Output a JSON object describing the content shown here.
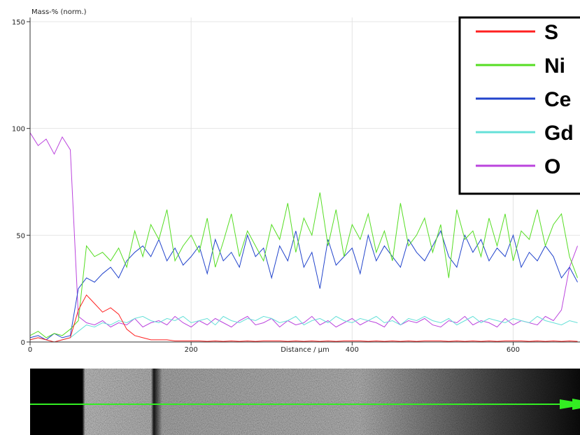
{
  "chart_data": {
    "type": "line",
    "y_label": "Mass-% (norm.)",
    "x_label": "Distance / µm",
    "xlim": [
      0,
      683
    ],
    "ylim": [
      0,
      150
    ],
    "xticks": [
      0,
      200,
      400,
      600
    ],
    "yticks": [
      0,
      50,
      100,
      150
    ],
    "grid": true,
    "legend": "upper right",
    "x": [
      0,
      10,
      20,
      30,
      40,
      50,
      60,
      70,
      80,
      90,
      100,
      110,
      120,
      130,
      140,
      150,
      160,
      170,
      180,
      190,
      200,
      210,
      220,
      230,
      240,
      250,
      260,
      270,
      280,
      290,
      300,
      310,
      320,
      330,
      340,
      350,
      360,
      370,
      380,
      390,
      400,
      410,
      420,
      430,
      440,
      450,
      460,
      470,
      480,
      490,
      500,
      510,
      520,
      530,
      540,
      550,
      560,
      570,
      580,
      590,
      600,
      610,
      620,
      630,
      640,
      650,
      660,
      670,
      680
    ],
    "series": [
      {
        "name": "S",
        "color": "#ff2020",
        "values": [
          1,
          2,
          1,
          0,
          1,
          2,
          15,
          22,
          18,
          14,
          16,
          13,
          6,
          3,
          2,
          1,
          1,
          1,
          0.5,
          0.5,
          0.5,
          0.5,
          0.3,
          0.5,
          0.3,
          0.5,
          0.3,
          0.5,
          0.3,
          0.5,
          0.5,
          0.5,
          0.3,
          0.5,
          0.3,
          0.5,
          0.3,
          0.5,
          0.3,
          0.5,
          0.5,
          0.5,
          0.3,
          0.5,
          0.3,
          0.5,
          0.3,
          0.5,
          0.3,
          0.5,
          0.5,
          0.5,
          0.3,
          0.5,
          0.3,
          0.5,
          0.3,
          0.5,
          0.3,
          0.5,
          0.5,
          0.5,
          0.3,
          0.5,
          0.3,
          0.5,
          0.3,
          0.5,
          0.3
        ]
      },
      {
        "name": "Ni",
        "color": "#55dd22",
        "values": [
          3,
          5,
          2,
          4,
          3,
          6,
          10,
          45,
          40,
          42,
          38,
          44,
          35,
          52,
          40,
          55,
          48,
          62,
          38,
          45,
          50,
          42,
          58,
          35,
          47,
          60,
          40,
          52,
          45,
          38,
          55,
          48,
          65,
          42,
          58,
          50,
          70,
          45,
          62,
          40,
          55,
          48,
          60,
          42,
          52,
          38,
          65,
          45,
          50,
          58,
          42,
          55,
          30,
          62,
          48,
          52,
          40,
          58,
          45,
          60,
          38,
          52,
          48,
          62,
          45,
          55,
          60,
          40,
          30
        ]
      },
      {
        "name": "Ce",
        "color": "#2244cc",
        "values": [
          2,
          3,
          1,
          4,
          2,
          3,
          25,
          30,
          28,
          32,
          35,
          30,
          38,
          42,
          45,
          40,
          48,
          38,
          44,
          36,
          40,
          45,
          32,
          48,
          38,
          42,
          35,
          50,
          40,
          44,
          30,
          45,
          38,
          52,
          35,
          42,
          25,
          48,
          36,
          40,
          44,
          32,
          50,
          38,
          45,
          40,
          35,
          48,
          42,
          38,
          45,
          52,
          40,
          35,
          50,
          42,
          48,
          38,
          44,
          40,
          50,
          35,
          42,
          38,
          45,
          40,
          30,
          35,
          28
        ]
      },
      {
        "name": "Gd",
        "color": "#66e0d8",
        "values": [
          1,
          2,
          1,
          0,
          1,
          2,
          5,
          8,
          7,
          9,
          8,
          10,
          9,
          11,
          12,
          10,
          9,
          11,
          10,
          12,
          9,
          10,
          11,
          8,
          12,
          10,
          9,
          11,
          10,
          12,
          11,
          9,
          10,
          12,
          8,
          10,
          11,
          9,
          12,
          10,
          9,
          11,
          10,
          12,
          9,
          10,
          8,
          11,
          10,
          12,
          10,
          9,
          11,
          8,
          10,
          12,
          9,
          11,
          10,
          9,
          11,
          10,
          9,
          12,
          10,
          9,
          8,
          10,
          9
        ]
      },
      {
        "name": "O",
        "color": "#bb44dd",
        "values": [
          98,
          92,
          95,
          88,
          96,
          90,
          12,
          9,
          8,
          10,
          7,
          9,
          8,
          11,
          7,
          9,
          10,
          8,
          12,
          9,
          7,
          10,
          8,
          11,
          9,
          7,
          10,
          12,
          8,
          9,
          11,
          7,
          10,
          8,
          9,
          12,
          8,
          10,
          7,
          9,
          11,
          8,
          10,
          9,
          7,
          12,
          8,
          10,
          9,
          11,
          8,
          7,
          10,
          9,
          12,
          8,
          10,
          9,
          7,
          11,
          8,
          10,
          9,
          8,
          12,
          10,
          15,
          35,
          45
        ]
      }
    ]
  }
}
